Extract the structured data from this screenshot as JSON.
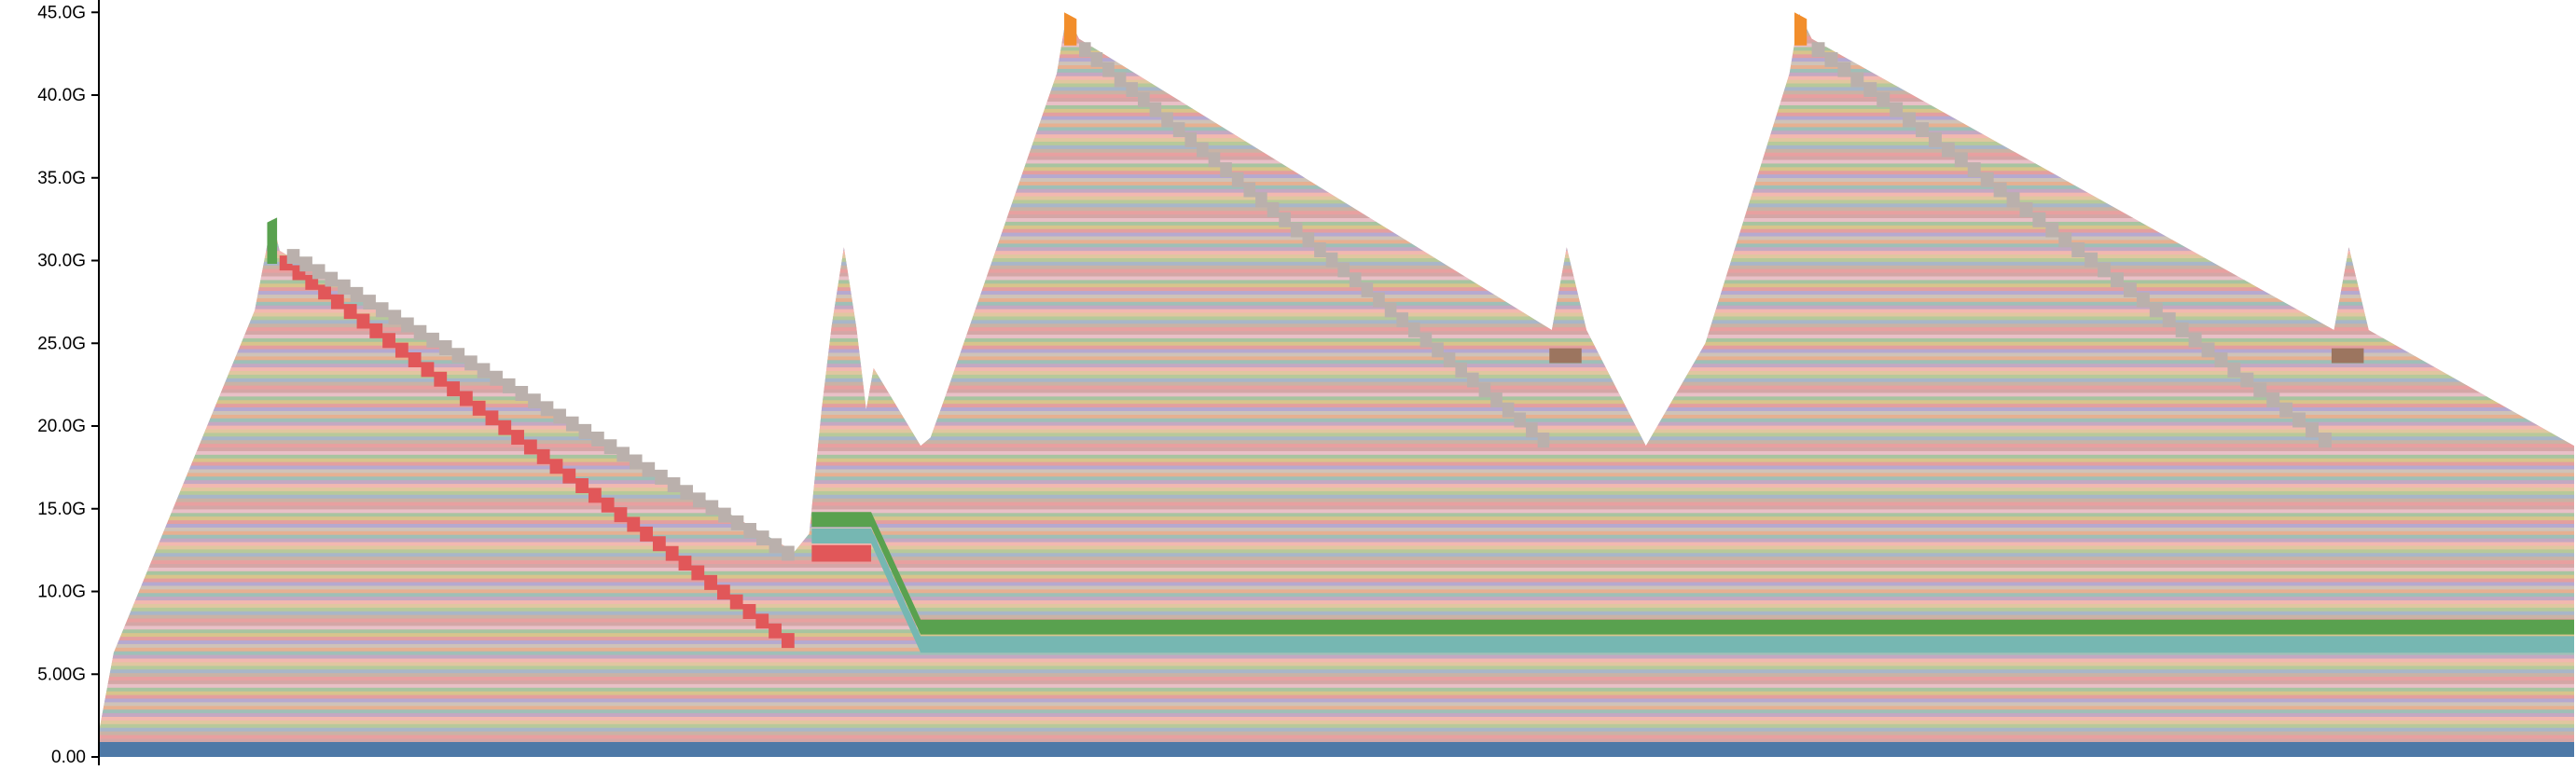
{
  "chart_data": {
    "type": "area",
    "title": "",
    "xlabel": "",
    "ylabel": "",
    "x_range": [
      0,
      100
    ],
    "ylim": [
      0,
      46
    ],
    "y_ticks": [
      {
        "value": 0,
        "label": "0.00"
      },
      {
        "value": 5,
        "label": "5.00G"
      },
      {
        "value": 10,
        "label": "10.0G"
      },
      {
        "value": 15,
        "label": "15.0G"
      },
      {
        "value": 20,
        "label": "20.0G"
      },
      {
        "value": 25,
        "label": "25.0G"
      },
      {
        "value": 30,
        "label": "30.0G"
      },
      {
        "value": 35,
        "label": "35.0G"
      },
      {
        "value": 40,
        "label": "40.0G"
      },
      {
        "value": 45,
        "label": "45.0G"
      }
    ],
    "grid": false,
    "legend": "none",
    "total_envelope": [
      [
        0,
        1.5
      ],
      [
        0.6,
        6.3
      ],
      [
        6.3,
        27.0
      ],
      [
        7.0,
        32.5
      ],
      [
        7.3,
        30.6
      ],
      [
        28.1,
        12.4
      ],
      [
        28.7,
        13.5
      ],
      [
        29.2,
        21.0
      ],
      [
        29.6,
        26.0
      ],
      [
        30.1,
        30.8
      ],
      [
        30.6,
        26.0
      ],
      [
        31.0,
        21.0
      ],
      [
        31.3,
        23.5
      ],
      [
        33.2,
        18.8
      ],
      [
        33.6,
        19.3
      ],
      [
        34.2,
        21.8
      ],
      [
        38.7,
        41.3
      ],
      [
        39.1,
        44.9
      ],
      [
        39.6,
        43.4
      ],
      [
        58.7,
        25.8
      ],
      [
        59.3,
        30.8
      ],
      [
        60.1,
        25.8
      ],
      [
        62.5,
        18.8
      ],
      [
        64.9,
        25.0
      ],
      [
        68.3,
        41.3
      ],
      [
        68.7,
        44.9
      ],
      [
        69.2,
        43.4
      ],
      [
        90.3,
        25.8
      ],
      [
        90.9,
        30.8
      ],
      [
        91.7,
        25.8
      ],
      [
        100,
        18.8
      ]
    ],
    "highlighted_series": [
      {
        "color": "#4e79a7",
        "points": [
          [
            0,
            0
          ],
          [
            100,
            0
          ],
          [
            100,
            0.9
          ],
          [
            0,
            0.9
          ]
        ]
      },
      {
        "color": "#59a14f",
        "points": [
          [
            6.8,
            29.8
          ],
          [
            7.2,
            29.8
          ],
          [
            7.2,
            32.6
          ],
          [
            6.8,
            32.3
          ]
        ]
      },
      {
        "color": "#e15759",
        "points": [
          [
            28.8,
            11.8
          ],
          [
            31.2,
            11.8
          ],
          [
            31.2,
            12.8
          ],
          [
            28.8,
            12.8
          ]
        ]
      },
      {
        "color": "#76b7b2",
        "points": [
          [
            28.8,
            12.9
          ],
          [
            31.2,
            12.9
          ],
          [
            33.2,
            6.3
          ],
          [
            100,
            6.3
          ],
          [
            100,
            7.3
          ],
          [
            33.2,
            7.3
          ],
          [
            31.2,
            13.8
          ],
          [
            28.8,
            13.8
          ]
        ]
      },
      {
        "color": "#59a14f",
        "points": [
          [
            28.8,
            13.9
          ],
          [
            31.2,
            13.9
          ],
          [
            33.2,
            7.4
          ],
          [
            100,
            7.4
          ],
          [
            100,
            8.3
          ],
          [
            33.2,
            8.3
          ],
          [
            31.2,
            14.8
          ],
          [
            28.8,
            14.8
          ]
        ]
      },
      {
        "color": "#f28e2b",
        "points": [
          [
            39.0,
            43.0
          ],
          [
            39.5,
            43.0
          ],
          [
            39.5,
            44.6
          ],
          [
            39.0,
            45.0
          ]
        ]
      },
      {
        "color": "#f28e2b",
        "points": [
          [
            68.5,
            43.0
          ],
          [
            69.0,
            43.0
          ],
          [
            69.0,
            44.6
          ],
          [
            68.5,
            45.0
          ]
        ]
      },
      {
        "color": "#9c755f",
        "points": [
          [
            58.6,
            23.8
          ],
          [
            59.9,
            23.8
          ],
          [
            59.9,
            24.7
          ],
          [
            58.6,
            24.7
          ]
        ]
      },
      {
        "color": "#9c755f",
        "points": [
          [
            90.2,
            23.8
          ],
          [
            91.5,
            23.8
          ],
          [
            91.5,
            24.7
          ],
          [
            90.2,
            24.7
          ]
        ]
      }
    ],
    "staircase_bands": [
      {
        "color": "#e15759",
        "x_start": 7.3,
        "x_end": 28.1,
        "top_start": 30.3,
        "top_end": 6.9,
        "thickness": 0.9
      },
      {
        "color": "#bab0ac",
        "x_start": 7.6,
        "x_end": 28.1,
        "top_start": 30.7,
        "top_end": 12.3,
        "thickness": 0.9
      },
      {
        "color": "#bab0ac",
        "x_start": 39.6,
        "x_end": 58.6,
        "top_start": 43.2,
        "top_end": 19.0,
        "thickness": 0.9
      },
      {
        "color": "#bab0ac",
        "x_start": 69.2,
        "x_end": 90.2,
        "top_start": 43.2,
        "top_end": 19.0,
        "thickness": 0.9
      }
    ]
  }
}
